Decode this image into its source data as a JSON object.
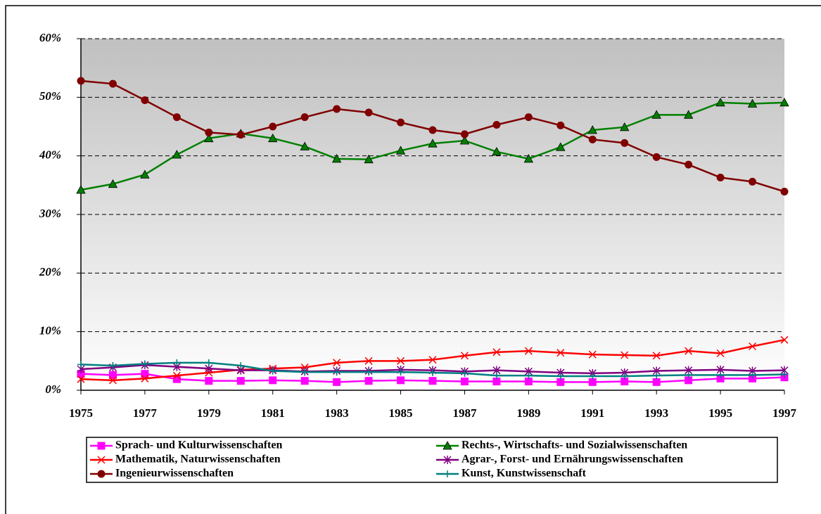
{
  "chart_data": {
    "type": "line",
    "x": [
      1975,
      1976,
      1977,
      1978,
      1979,
      1980,
      1981,
      1982,
      1983,
      1984,
      1985,
      1986,
      1987,
      1988,
      1989,
      1990,
      1991,
      1992,
      1993,
      1994,
      1995,
      1996,
      1997
    ],
    "xlim": [
      1975,
      1997
    ],
    "xticks": [
      1975,
      1977,
      1979,
      1981,
      1983,
      1985,
      1987,
      1989,
      1991,
      1993,
      1995,
      1997
    ],
    "ylim": [
      0,
      60
    ],
    "yticks": [
      {
        "value": 0,
        "label": "0%"
      },
      {
        "value": 10,
        "label": "10%"
      },
      {
        "value": 20,
        "label": "20%"
      },
      {
        "value": 30,
        "label": "30%"
      },
      {
        "value": 40,
        "label": "40%"
      },
      {
        "value": 50,
        "label": "50%"
      },
      {
        "value": 60,
        "label": "60%"
      }
    ],
    "grid": true,
    "series": [
      {
        "name": "Sprach- und Kulturwissenschaften",
        "color": "#ff00ff",
        "marker": "square",
        "values": [
          2.8,
          2.6,
          2.8,
          1.9,
          1.6,
          1.6,
          1.7,
          1.6,
          1.4,
          1.6,
          1.7,
          1.6,
          1.5,
          1.5,
          1.5,
          1.4,
          1.4,
          1.5,
          1.4,
          1.7,
          2.0,
          2.0,
          2.2
        ]
      },
      {
        "name": "Rechts-, Wirtschafts- und Sozialwissenschaften",
        "color": "#008000",
        "marker": "triangle",
        "values": [
          34.2,
          35.2,
          36.8,
          40.2,
          43.0,
          43.8,
          43.0,
          41.6,
          39.5,
          39.4,
          40.9,
          42.1,
          42.6,
          40.7,
          39.5,
          41.5,
          44.4,
          44.9,
          47.0,
          47.0,
          49.1,
          48.9,
          49.1
        ]
      },
      {
        "name": "Mathematik, Naturwissenschaften",
        "color": "#ff0000",
        "marker": "x",
        "values": [
          1.9,
          1.7,
          2.0,
          2.5,
          3.0,
          3.5,
          3.7,
          3.9,
          4.7,
          5.0,
          5.0,
          5.2,
          5.9,
          6.5,
          6.7,
          6.4,
          6.1,
          6.0,
          5.9,
          6.7,
          6.3,
          7.5,
          8.6
        ]
      },
      {
        "name": "Agrar-, Forst- und Ernährungswissenschaften",
        "color": "#800080",
        "marker": "star",
        "values": [
          3.6,
          3.9,
          4.3,
          4.0,
          3.7,
          3.4,
          3.4,
          3.2,
          3.3,
          3.3,
          3.5,
          3.4,
          3.2,
          3.4,
          3.2,
          3.0,
          2.9,
          3.0,
          3.3,
          3.4,
          3.5,
          3.3,
          3.4
        ]
      },
      {
        "name": "Ingenieurwissenschaften",
        "color": "#800000",
        "marker": "circle",
        "values": [
          52.8,
          52.3,
          49.5,
          46.6,
          44.0,
          43.6,
          45.0,
          46.6,
          48.0,
          47.4,
          45.7,
          44.4,
          43.7,
          45.3,
          46.6,
          45.2,
          42.8,
          42.2,
          39.8,
          38.5,
          36.3,
          35.6,
          33.9
        ]
      },
      {
        "name": "Kunst, Kunstwissenschaft",
        "color": "#008080",
        "marker": "plus",
        "values": [
          4.4,
          4.2,
          4.5,
          4.7,
          4.7,
          4.2,
          3.3,
          3.1,
          3.1,
          3.1,
          3.1,
          3.0,
          2.9,
          2.5,
          2.5,
          2.4,
          2.4,
          2.4,
          2.5,
          2.6,
          2.6,
          2.6,
          2.7
        ]
      }
    ]
  }
}
